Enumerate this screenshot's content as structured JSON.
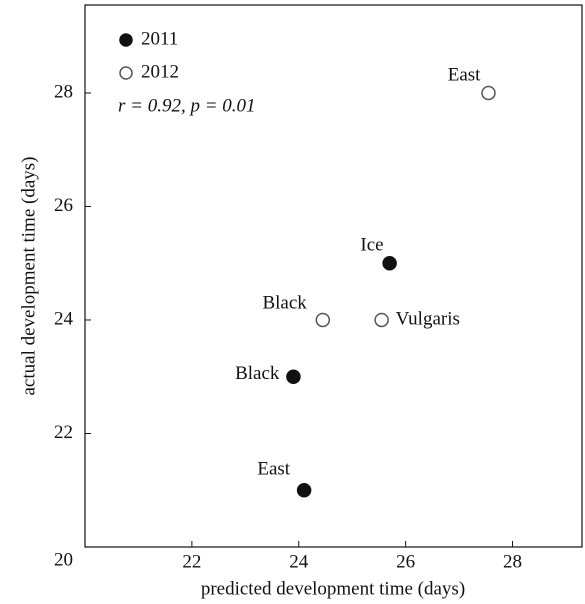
{
  "chart_data": {
    "type": "scatter",
    "x_label": "predicted development time (days)",
    "y_label": "actual development time (days)",
    "annotation": "r = 0.92, p = 0.01",
    "xlim": [
      20,
      29.3
    ],
    "ylim": [
      20,
      29.55
    ],
    "xticks": [
      22,
      24,
      26,
      28
    ],
    "yticks": [
      20,
      22,
      24,
      26,
      28
    ],
    "series": [
      {
        "name": "2011",
        "color": "#111111",
        "filled": true,
        "x": [
          23.9,
          24.1,
          25.7
        ],
        "values": [
          23,
          21,
          25
        ],
        "labels": [
          "Black",
          "East",
          "Ice"
        ]
      },
      {
        "name": "2012",
        "color": "#555555",
        "filled": false,
        "x": [
          24.45,
          25.55,
          27.55
        ],
        "values": [
          24,
          24,
          28
        ],
        "labels": [
          "Black",
          "Vulgaris",
          "East"
        ]
      }
    ]
  }
}
